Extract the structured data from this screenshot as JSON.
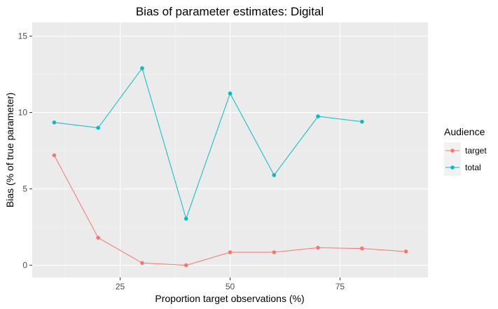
{
  "chart_data": {
    "type": "line",
    "title": "Bias of parameter estimates: Digital",
    "xlabel": "Proportion target observations (%)",
    "ylabel": "Bias (% of true parameter)",
    "xlim": [
      5,
      95
    ],
    "ylim": [
      -0.8,
      15.9
    ],
    "x_ticks": [
      25,
      50,
      75
    ],
    "x_tick_labels": [
      "25",
      "50",
      "75"
    ],
    "y_ticks": [
      0,
      5,
      10,
      15
    ],
    "y_tick_labels": [
      "0",
      "5",
      "10",
      "15"
    ],
    "grid": true,
    "legend": {
      "title": "Audience",
      "position": "right"
    },
    "series": [
      {
        "name": "target",
        "color": "#F8766D",
        "x": [
          10,
          20,
          30,
          40,
          50,
          60,
          70,
          80,
          90
        ],
        "values": [
          7.2,
          1.8,
          0.15,
          0.0,
          0.85,
          0.85,
          1.15,
          1.1,
          0.9
        ]
      },
      {
        "name": "total",
        "color": "#00BFC4",
        "x": [
          10,
          20,
          30,
          40,
          50,
          60,
          70,
          80
        ],
        "values": [
          9.35,
          9.0,
          12.9,
          3.05,
          11.25,
          5.9,
          9.75,
          9.4
        ]
      }
    ]
  }
}
